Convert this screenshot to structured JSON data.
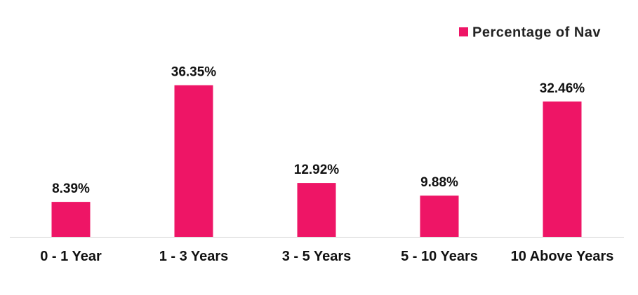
{
  "chart_data": {
    "type": "bar",
    "categories": [
      "0 - 1 Year",
      "1 - 3 Years",
      "3 - 5 Years",
      "5 - 10 Years",
      "10 Above Years"
    ],
    "series": [
      {
        "name": "Percentage of Nav",
        "values": [
          8.39,
          36.35,
          12.92,
          9.88,
          32.46
        ],
        "labels": [
          "8.39%",
          "36.35%",
          "12.92%",
          "9.88%",
          "32.46%"
        ],
        "color": "#EE1566"
      }
    ],
    "title": "",
    "xlabel": "",
    "ylabel": "",
    "ylim": [
      0,
      42
    ],
    "grid": false,
    "legend": "top-right"
  }
}
